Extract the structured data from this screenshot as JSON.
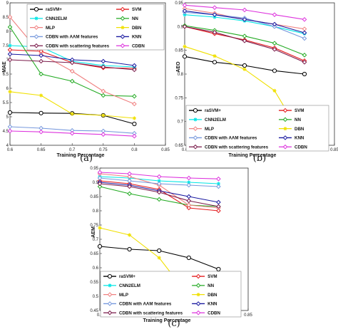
{
  "chart_data": [
    {
      "type": "line",
      "panel_label": "(a)",
      "xlabel": "Training Percentage",
      "ylabel": "MAE",
      "xlim": [
        0.6,
        0.85
      ],
      "ylim": [
        4,
        9
      ],
      "xticks": [
        "0.6",
        "0.65",
        "0.7",
        "0.75",
        "0.8",
        "0.85"
      ],
      "yticks": [
        "4",
        "4.5",
        "5",
        "5.5",
        "6",
        "6.5",
        "7",
        "7.5",
        "8",
        "8.5",
        "9"
      ],
      "x": [
        0.6,
        0.65,
        0.7,
        0.75,
        0.8
      ],
      "legend_position": "top",
      "series": [
        {
          "name": "raSVM+",
          "color": "#000000",
          "marker": "o",
          "values": [
            5.15,
            5.13,
            5.12,
            5.05,
            4.75
          ]
        },
        {
          "name": "SVM",
          "color": "#e41a1c",
          "marker": "d",
          "values": [
            7.35,
            7.3,
            6.9,
            6.72,
            6.7
          ]
        },
        {
          "name": "CNN2ELM",
          "color": "#00e5e5",
          "marker": "*",
          "values": [
            7.5,
            7.45,
            6.95,
            6.8,
            6.75
          ]
        },
        {
          "name": "NN",
          "color": "#22aa22",
          "marker": "d",
          "values": [
            8.15,
            6.5,
            6.25,
            5.75,
            5.72
          ]
        },
        {
          "name": "MLP",
          "color": "#f08080",
          "marker": "d",
          "values": [
            8.5,
            7.2,
            6.6,
            5.9,
            5.45
          ]
        },
        {
          "name": "DBN",
          "color": "#f0e000",
          "marker": "*",
          "values": [
            5.88,
            5.75,
            5.1,
            5.05,
            4.95
          ]
        },
        {
          "name": "CDBN with AAM features",
          "color": "#7799dd",
          "marker": "d",
          "values": [
            4.65,
            4.6,
            4.52,
            4.5,
            4.42
          ]
        },
        {
          "name": "KNN",
          "color": "#1a1aa0",
          "marker": "d",
          "values": [
            7.2,
            7.15,
            7.0,
            6.95,
            6.8
          ]
        },
        {
          "name": "CDBN with scattering features",
          "color": "#7a1a4a",
          "marker": "d",
          "values": [
            7.0,
            6.95,
            6.9,
            6.75,
            6.65
          ]
        },
        {
          "name": "CDBN",
          "color": "#dd33dd",
          "marker": "d",
          "values": [
            4.5,
            4.47,
            4.42,
            4.38,
            4.32
          ]
        }
      ]
    },
    {
      "type": "line",
      "panel_label": "(b)",
      "xlabel": "Training Percentage",
      "ylabel": "AEO",
      "xlim": [
        0.6,
        0.85
      ],
      "ylim": [
        0.65,
        0.95
      ],
      "xticks": [
        "0.6",
        "0.65",
        "0.7",
        "0.75",
        "0.8",
        "0.85"
      ],
      "yticks": [
        "0.65",
        "0.7",
        "0.75",
        "0.8",
        "0.85",
        "0.9",
        "0.95"
      ],
      "x": [
        0.6,
        0.65,
        0.7,
        0.75,
        0.8
      ],
      "legend_position": "bottom",
      "series": [
        {
          "name": "raSVM+",
          "color": "#000000",
          "marker": "o",
          "values": [
            0.837,
            0.825,
            0.818,
            0.807,
            0.8
          ]
        },
        {
          "name": "SVM",
          "color": "#e41a1c",
          "marker": "d",
          "values": [
            0.9,
            0.885,
            0.872,
            0.855,
            0.828
          ]
        },
        {
          "name": "CNN2ELM",
          "color": "#00e5e5",
          "marker": "*",
          "values": [
            0.925,
            0.92,
            0.912,
            0.9,
            0.885
          ]
        },
        {
          "name": "NN",
          "color": "#22aa22",
          "marker": "d",
          "values": [
            0.902,
            0.892,
            0.88,
            0.865,
            0.84
          ]
        },
        {
          "name": "MLP",
          "color": "#f08080",
          "marker": "d",
          "values": [
            0.938,
            0.928,
            0.915,
            0.905,
            0.895
          ]
        },
        {
          "name": "DBN",
          "color": "#f0e000",
          "marker": "*",
          "values": [
            0.858,
            0.838,
            0.81,
            0.765,
            0.66
          ]
        },
        {
          "name": "CDBN with AAM features",
          "color": "#7799dd",
          "marker": "d",
          "values": [
            0.93,
            0.925,
            0.918,
            0.9,
            0.875
          ]
        },
        {
          "name": "KNN",
          "color": "#1a1aa0",
          "marker": "d",
          "values": [
            0.933,
            0.925,
            0.915,
            0.905,
            0.887
          ]
        },
        {
          "name": "CDBN with scattering features",
          "color": "#7a1a4a",
          "marker": "d",
          "values": [
            0.9,
            0.888,
            0.87,
            0.852,
            0.825
          ]
        },
        {
          "name": "CDBN",
          "color": "#dd33dd",
          "marker": "d",
          "values": [
            0.945,
            0.94,
            0.935,
            0.925,
            0.915
          ]
        }
      ]
    },
    {
      "type": "line",
      "panel_label": "(c)",
      "xlabel": "Training Percentage",
      "ylabel": "AEM",
      "xlim": [
        0.6,
        0.85
      ],
      "ylim": [
        0.45,
        0.95
      ],
      "xticks": [
        "0.6",
        "0.65",
        "0.7",
        "0.75",
        "0.8",
        "0.85"
      ],
      "yticks": [
        "0.45",
        "0.5",
        "0.55",
        "0.6",
        "0.65",
        "0.7",
        "0.75",
        "0.8",
        "0.85",
        "0.9",
        "0.95"
      ],
      "x": [
        0.6,
        0.65,
        0.7,
        0.75,
        0.8
      ],
      "legend_position": "bottom",
      "series": [
        {
          "name": "raSVM+",
          "color": "#000000",
          "marker": "o",
          "values": [
            0.675,
            0.665,
            0.66,
            0.635,
            0.595
          ]
        },
        {
          "name": "SVM",
          "color": "#e41a1c",
          "marker": "d",
          "values": [
            0.905,
            0.895,
            0.875,
            0.81,
            0.8
          ]
        },
        {
          "name": "CNN2ELM",
          "color": "#00e5e5",
          "marker": "*",
          "values": [
            0.92,
            0.915,
            0.905,
            0.9,
            0.895
          ]
        },
        {
          "name": "NN",
          "color": "#22aa22",
          "marker": "d",
          "values": [
            0.885,
            0.86,
            0.84,
            0.82,
            0.815
          ]
        },
        {
          "name": "MLP",
          "color": "#f08080",
          "marker": "d",
          "values": [
            0.93,
            0.92,
            0.89,
            0.82,
            0.81
          ]
        },
        {
          "name": "DBN",
          "color": "#f0e000",
          "marker": "*",
          "values": [
            0.74,
            0.715,
            0.635,
            0.5,
            0.49
          ]
        },
        {
          "name": "CDBN with AAM features",
          "color": "#7799dd",
          "marker": "d",
          "values": [
            0.915,
            0.905,
            0.895,
            0.89,
            0.885
          ]
        },
        {
          "name": "KNN",
          "color": "#1a1aa0",
          "marker": "d",
          "values": [
            0.9,
            0.89,
            0.87,
            0.85,
            0.83
          ]
        },
        {
          "name": "CDBN with scattering features",
          "color": "#7a1a4a",
          "marker": "d",
          "values": [
            0.895,
            0.885,
            0.865,
            0.835,
            0.815
          ]
        },
        {
          "name": "CDBN",
          "color": "#dd33dd",
          "marker": "d",
          "values": [
            0.935,
            0.93,
            0.92,
            0.915,
            0.912
          ]
        }
      ]
    }
  ]
}
